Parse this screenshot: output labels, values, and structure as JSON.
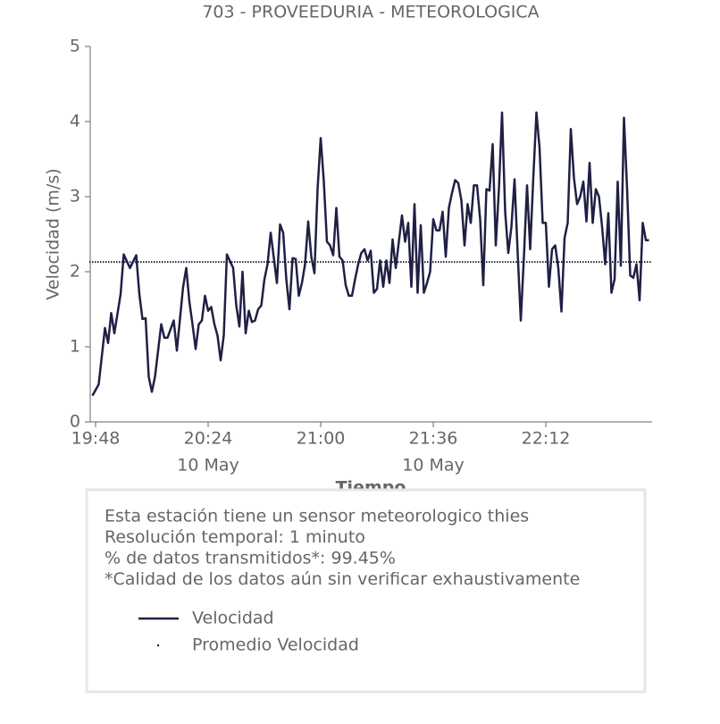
{
  "chart_data": {
    "type": "line",
    "title": "703 - PROVEEDURIA - METEOROLOGICA",
    "x_label": "Tiempo",
    "y_label": "Velocidad (m/s)",
    "x": [
      "19:47",
      "19:49",
      "19:51",
      "19:52",
      "19:53",
      "19:54",
      "19:56",
      "19:57",
      "19:59",
      "20:01",
      "20:02",
      "20:03",
      "20:04",
      "20:05",
      "20:06",
      "20:07",
      "20:09",
      "20:10",
      "20:11",
      "20:13",
      "20:14",
      "20:16",
      "20:17",
      "20:18",
      "20:19",
      "20:20",
      "20:21",
      "20:22",
      "20:23",
      "20:24",
      "20:25",
      "20:26",
      "20:27",
      "20:28",
      "20:29",
      "20:30",
      "20:32",
      "20:33",
      "20:34",
      "20:35",
      "20:36",
      "20:37",
      "20:38",
      "20:39",
      "20:40",
      "20:41",
      "20:42",
      "20:43",
      "20:44",
      "20:46",
      "20:47",
      "20:48",
      "20:49",
      "20:50",
      "20:51",
      "20:52",
      "20:53",
      "20:54",
      "20:55",
      "20:56",
      "20:57",
      "20:58",
      "20:59",
      "21:00",
      "21:01",
      "21:02",
      "21:03",
      "21:04",
      "21:05",
      "21:06",
      "21:07",
      "21:08",
      "21:09",
      "21:10",
      "21:11",
      "21:12",
      "21:13",
      "21:14",
      "21:15",
      "21:16",
      "21:17",
      "21:18",
      "21:19",
      "21:20",
      "21:21",
      "21:22",
      "21:23",
      "21:24",
      "21:25",
      "21:26",
      "21:27",
      "21:28",
      "21:29",
      "21:30",
      "21:31",
      "21:32",
      "21:33",
      "21:34",
      "21:35",
      "21:36",
      "21:37",
      "21:38",
      "21:39",
      "21:40",
      "21:41",
      "21:42",
      "21:43",
      "21:44",
      "21:45",
      "21:46",
      "21:47",
      "21:48",
      "21:49",
      "21:50",
      "21:51",
      "21:52",
      "21:53",
      "21:54",
      "21:55",
      "21:56",
      "21:57",
      "21:58",
      "21:59",
      "22:00",
      "22:01",
      "22:02",
      "22:03",
      "22:04",
      "22:05",
      "22:06",
      "22:07",
      "22:08",
      "22:09",
      "22:10",
      "22:11",
      "22:12",
      "22:13",
      "22:14",
      "22:15",
      "22:16",
      "22:17",
      "22:18",
      "22:19",
      "22:20",
      "22:21",
      "22:22",
      "22:23",
      "22:24",
      "22:25",
      "22:26",
      "22:27",
      "22:28",
      "22:29",
      "22:30",
      "22:31",
      "22:32",
      "22:33",
      "22:34",
      "22:35",
      "22:36",
      "22:37",
      "22:38",
      "22:39",
      "22:40",
      "22:41",
      "22:42",
      "22:43",
      "22:44",
      "22:45"
    ],
    "series": [
      {
        "name": "Velocidad",
        "color": "#1f2044",
        "values": [
          0.35,
          0.5,
          1.25,
          1.05,
          1.45,
          1.18,
          1.7,
          2.23,
          2.05,
          2.22,
          1.7,
          1.37,
          1.38,
          0.6,
          0.4,
          0.6,
          1.3,
          1.12,
          1.12,
          1.35,
          0.95,
          1.8,
          2.05,
          1.6,
          1.3,
          0.97,
          1.3,
          1.35,
          1.68,
          1.48,
          1.53,
          1.3,
          1.15,
          0.82,
          1.15,
          2.23,
          2.05,
          1.55,
          1.27,
          2.0,
          1.18,
          1.48,
          1.33,
          1.35,
          1.5,
          1.55,
          1.9,
          2.1,
          2.52,
          1.85,
          2.63,
          2.52,
          1.9,
          1.5,
          2.18,
          2.17,
          1.68,
          1.85,
          2.1,
          2.67,
          2.2,
          1.98,
          3.1,
          3.78,
          3.2,
          2.4,
          2.35,
          2.22,
          2.85,
          2.2,
          2.15,
          1.82,
          1.68,
          1.68,
          1.9,
          2.1,
          2.25,
          2.3,
          2.15,
          2.28,
          1.72,
          1.77,
          2.15,
          1.8,
          2.15,
          1.85,
          2.43,
          2.05,
          2.4,
          2.75,
          2.4,
          2.65,
          1.8,
          2.9,
          1.72,
          2.62,
          1.72,
          1.85,
          2.0,
          2.7,
          2.55,
          2.55,
          2.8,
          2.2,
          2.85,
          3.05,
          3.22,
          3.18,
          2.95,
          2.35,
          2.9,
          2.65,
          3.15,
          3.15,
          2.7,
          1.82,
          3.1,
          3.08,
          3.7,
          2.35,
          3.1,
          4.12,
          2.8,
          2.25,
          2.6,
          3.23,
          2.25,
          1.35,
          2.2,
          3.15,
          2.3,
          3.25,
          4.12,
          3.65,
          2.65,
          2.65,
          1.8,
          2.3,
          2.35,
          2.05,
          1.47,
          2.45,
          2.65,
          3.9,
          3.25,
          2.9,
          3.0,
          3.2,
          2.67,
          3.45,
          2.65,
          3.1,
          3.0,
          2.6,
          2.1,
          2.78,
          1.72,
          1.9,
          3.2,
          2.08,
          4.05,
          3.1,
          1.95,
          1.92,
          2.1,
          1.62,
          2.65,
          2.42,
          2.42
        ]
      }
    ],
    "mean_line": {
      "name": "Promedio Velocidad",
      "value": 2.13,
      "color": "#1f2044"
    },
    "xlim": [
      "19:46",
      "22:46"
    ],
    "xticks": [
      "19:48",
      "20:24",
      "21:00",
      "21:36",
      "22:12"
    ],
    "xtick_dates": [
      null,
      "10 May",
      null,
      "10 May",
      null
    ],
    "ylim": [
      0,
      5
    ],
    "yticks": [
      0,
      1,
      2,
      3,
      4,
      5
    ],
    "grid": false,
    "info_lines": [
      "Esta estación tiene un sensor meteorologico thies",
      "Resolución temporal: 1 minuto",
      "% de datos transmitidos*: 99.45%",
      "*Calidad de los datos aún sin verificar exhaustivamente"
    ]
  }
}
